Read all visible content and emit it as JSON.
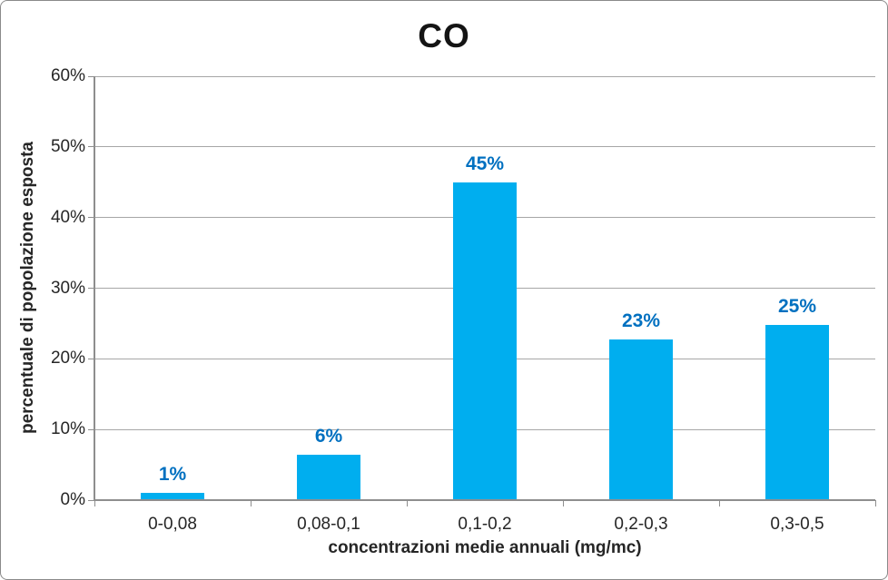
{
  "chart_data": {
    "type": "bar",
    "title": "CO",
    "categories": [
      "0-0,08",
      "0,08-0,1",
      "0,1-0,2",
      "0,2-0,3",
      "0,3-0,5"
    ],
    "values": [
      1,
      6.4,
      45,
      22.8,
      24.8
    ],
    "data_labels": [
      "1%",
      "6%",
      "45%",
      "23%",
      "25%"
    ],
    "xlabel": "concentrazioni medie annuali (mg/mc)",
    "ylabel": "percentuale di popolazione esposta",
    "ylim": [
      0,
      60
    ],
    "ytick_step": 10,
    "ytick_labels": [
      "0%",
      "10%",
      "20%",
      "30%",
      "40%",
      "50%",
      "60%"
    ],
    "grid": true,
    "legend": "none",
    "bar_color": "#00AEEF",
    "label_color": "#0070C0",
    "gridline_color": "#A6A6A6",
    "axis_color": "#8E8E8E",
    "text_color": "#262626"
  }
}
